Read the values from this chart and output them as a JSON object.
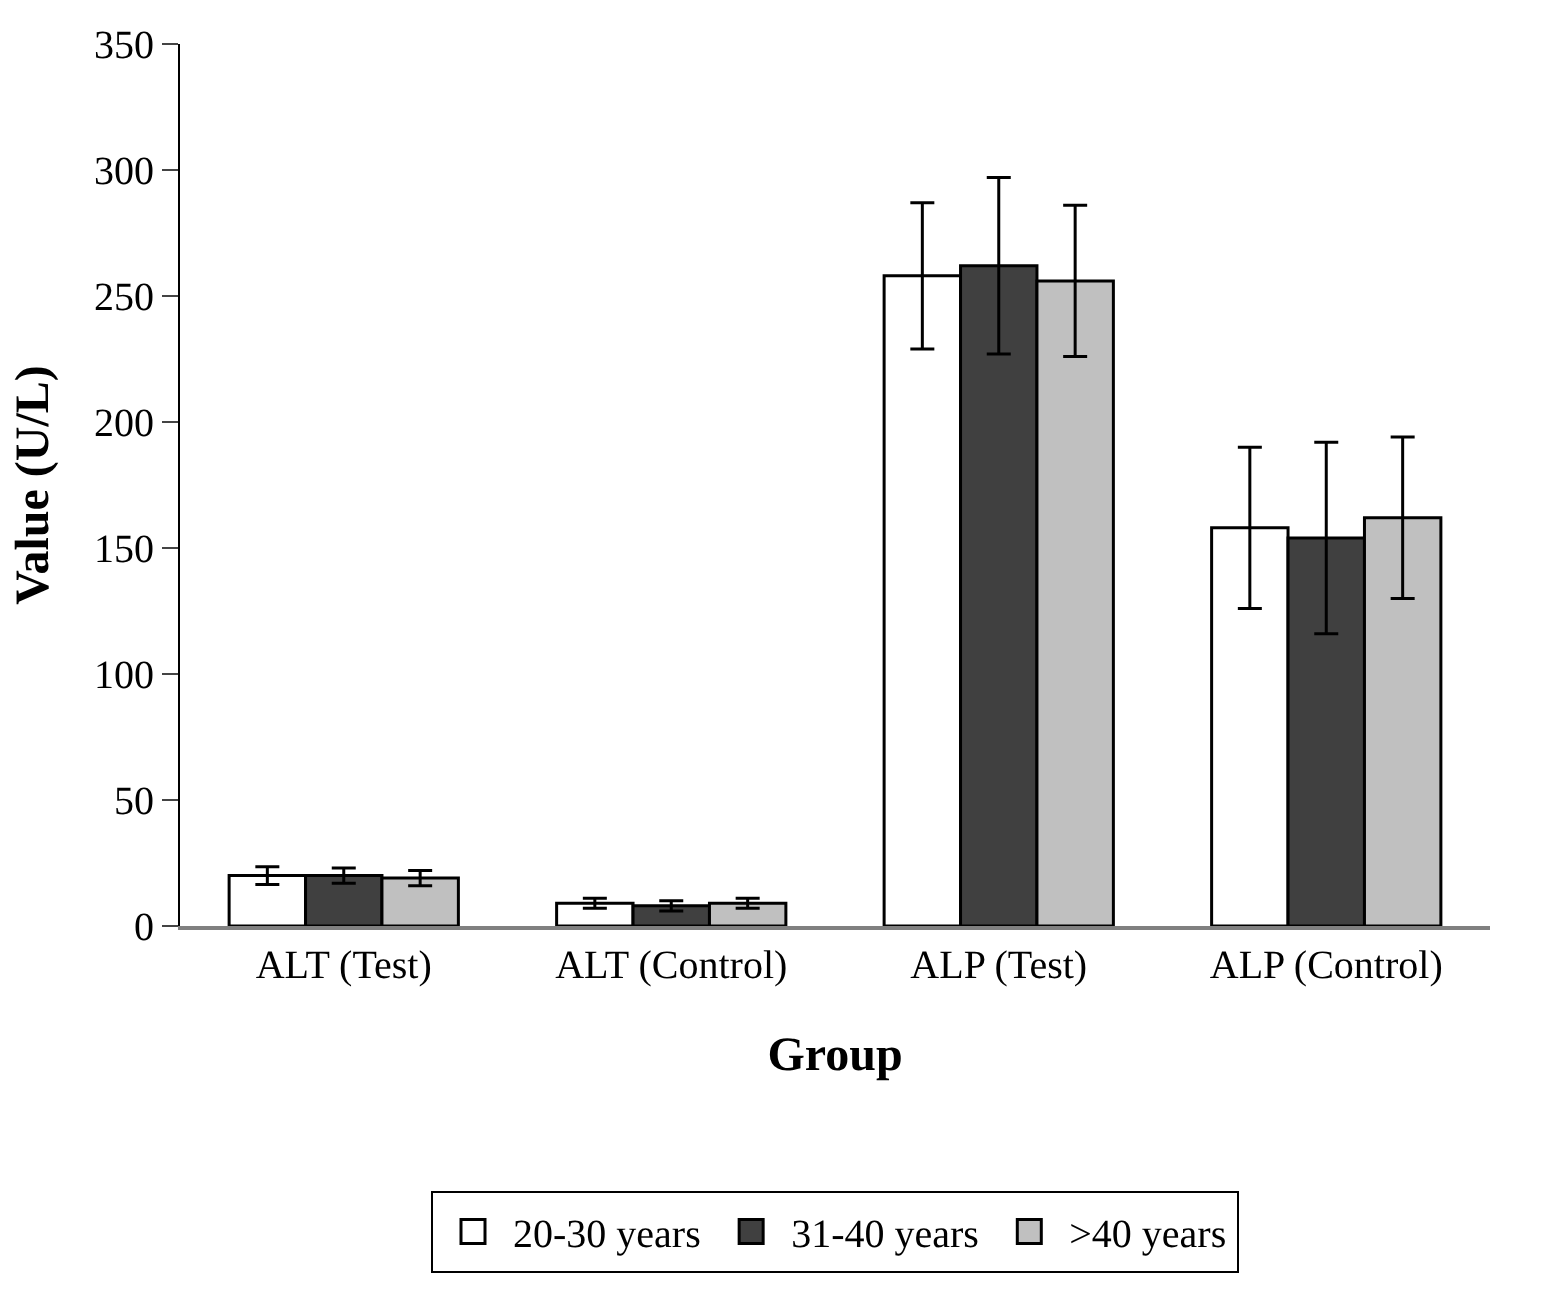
{
  "chart_data": {
    "type": "bar",
    "xlabel": "Group",
    "ylabel": "Value (U/L)",
    "categories": [
      "ALT (Test)",
      "ALT (Control)",
      "ALP (Test)",
      "ALP (Control)"
    ],
    "series": [
      {
        "name": "20-30 years",
        "color": "#ffffff",
        "values": [
          20,
          9,
          258,
          158
        ],
        "errors": [
          3.5,
          2,
          29,
          32
        ]
      },
      {
        "name": "31-40 years",
        "color": "#404040",
        "values": [
          20,
          8,
          262,
          154
        ],
        "errors": [
          3,
          2,
          35,
          38
        ]
      },
      {
        "name": ">40 years",
        "color": "#c0c0c0",
        "values": [
          19,
          9,
          256,
          162
        ],
        "errors": [
          3,
          2,
          30,
          32
        ]
      }
    ],
    "ylim": [
      0,
      350
    ],
    "yticks": [
      0,
      50,
      100,
      150,
      200,
      250,
      300,
      350
    ],
    "legend": "bottom"
  }
}
